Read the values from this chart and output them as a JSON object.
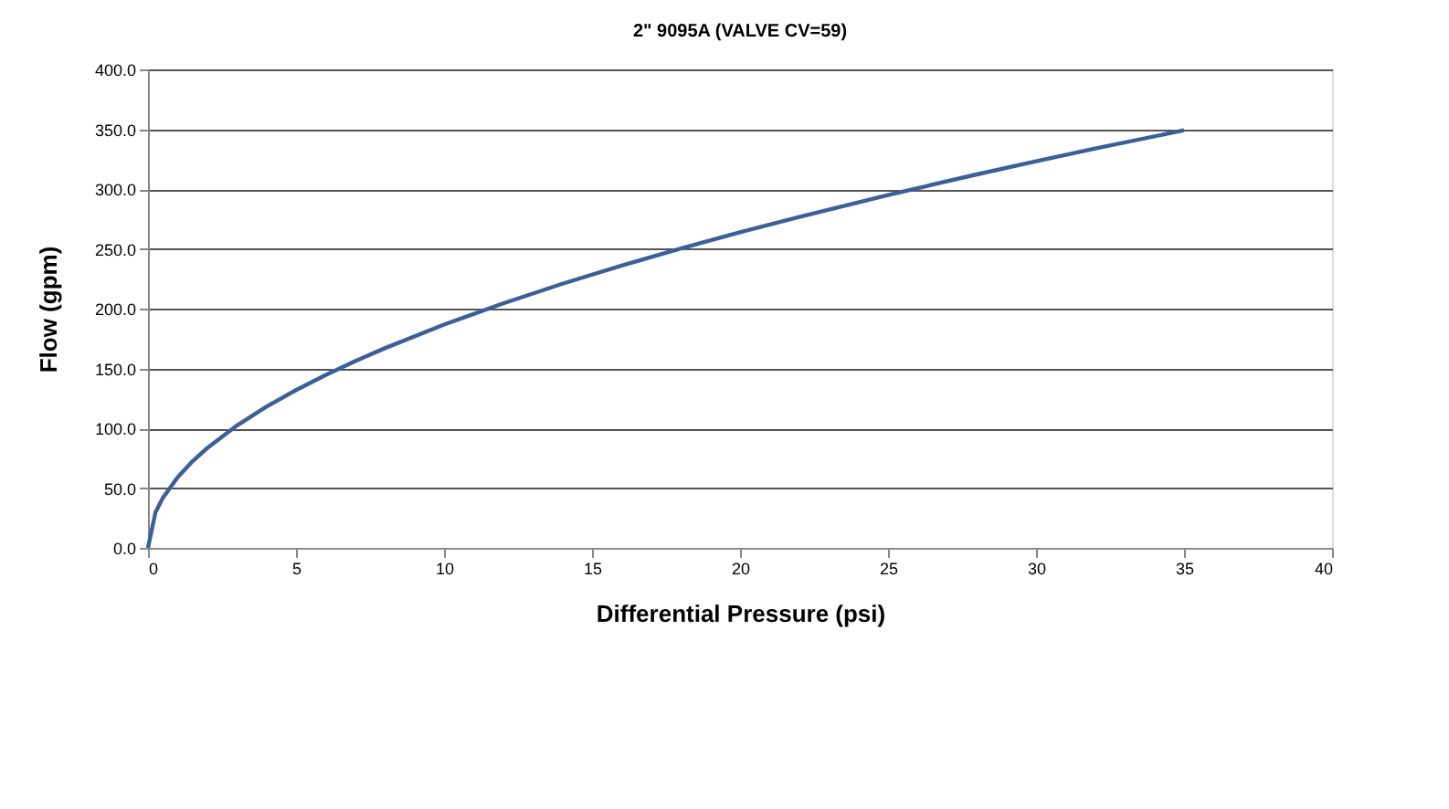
{
  "chart_data": {
    "type": "line",
    "title": "2\" 9095A (VALVE CV=59)",
    "xlabel": "Differential Pressure (psi)",
    "ylabel": "Flow (gpm)",
    "x": [
      0,
      0.25,
      0.5,
      1,
      1.5,
      2,
      3,
      4,
      5,
      6,
      7,
      8,
      10,
      12,
      14,
      16,
      18,
      20,
      22,
      25,
      28,
      30,
      32,
      35
    ],
    "series": [
      {
        "color": "#3d5f97",
        "values": [
          0,
          29.5,
          41.7,
          59,
          72.3,
          83.4,
          102.2,
          118,
          131.9,
          144.5,
          156.1,
          166.9,
          186.6,
          204.4,
          220.8,
          236,
          250.3,
          263.9,
          276.7,
          295,
          312.2,
          323.2,
          333.8,
          349.1
        ]
      }
    ],
    "xlim": [
      0,
      40
    ],
    "xticks": [
      0,
      5,
      10,
      15,
      20,
      25,
      30,
      35,
      40
    ],
    "ylim": [
      0,
      400
    ],
    "yticks": [
      {
        "value": 0,
        "label": "0.0"
      },
      {
        "value": 50,
        "label": "50.0"
      },
      {
        "value": 100,
        "label": "100.0"
      },
      {
        "value": 150,
        "label": "150.0"
      },
      {
        "value": 200,
        "label": "200.0"
      },
      {
        "value": 250,
        "label": "250.0"
      },
      {
        "value": 300,
        "label": "300.0"
      },
      {
        "value": 350,
        "label": "350.0"
      },
      {
        "value": 400,
        "label": "400.0"
      }
    ],
    "grid": "y",
    "legend": false,
    "marker": "none",
    "line_style": "solid"
  }
}
